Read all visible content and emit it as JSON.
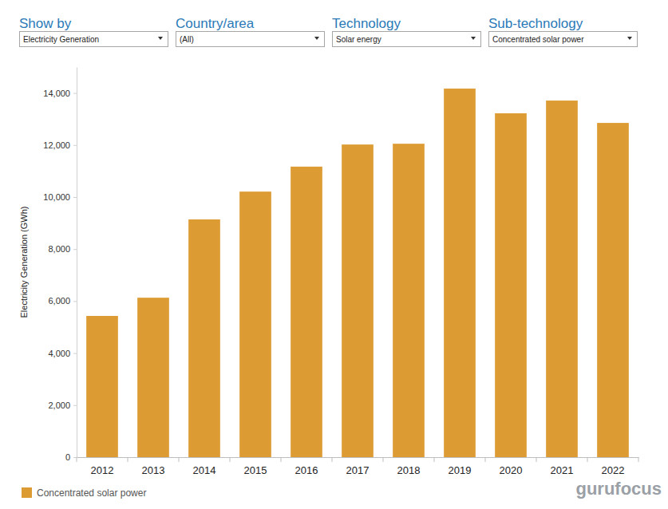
{
  "chart_data": {
    "type": "bar",
    "y_label": "Electricity Generation (GWh)",
    "categories": [
      "2012",
      "2013",
      "2014",
      "2015",
      "2016",
      "2017",
      "2018",
      "2019",
      "2020",
      "2021",
      "2022"
    ],
    "series": [
      {
        "name": "Concentrated solar power",
        "color": "#dd9c33",
        "values": [
          5430,
          6130,
          9140,
          10210,
          11170,
          12020,
          12050,
          14170,
          13220,
          13710,
          12850
        ]
      }
    ],
    "ylim": [
      0,
      15000
    ],
    "yticks": [
      0,
      {
        "value": 2000,
        "label": "2,000"
      },
      {
        "value": 4000,
        "label": "4,000"
      },
      {
        "value": 6000,
        "label": "6,000"
      },
      {
        "value": 8000,
        "label": "8,000"
      },
      {
        "value": 10000,
        "label": "10,000"
      },
      {
        "value": 12000,
        "label": "12,000"
      },
      {
        "value": 14000,
        "label": "14,000"
      }
    ],
    "grid": false,
    "legend": "bottom-left"
  },
  "controls": [
    {
      "label": "Show by",
      "value": "Electricity Generation"
    },
    {
      "label": "Country/area",
      "value": "(All)"
    },
    {
      "label": "Technology",
      "value": "Solar energy"
    },
    {
      "label": "Sub-technology",
      "value": "Concentrated solar power"
    }
  ],
  "watermark": "gurufocus"
}
